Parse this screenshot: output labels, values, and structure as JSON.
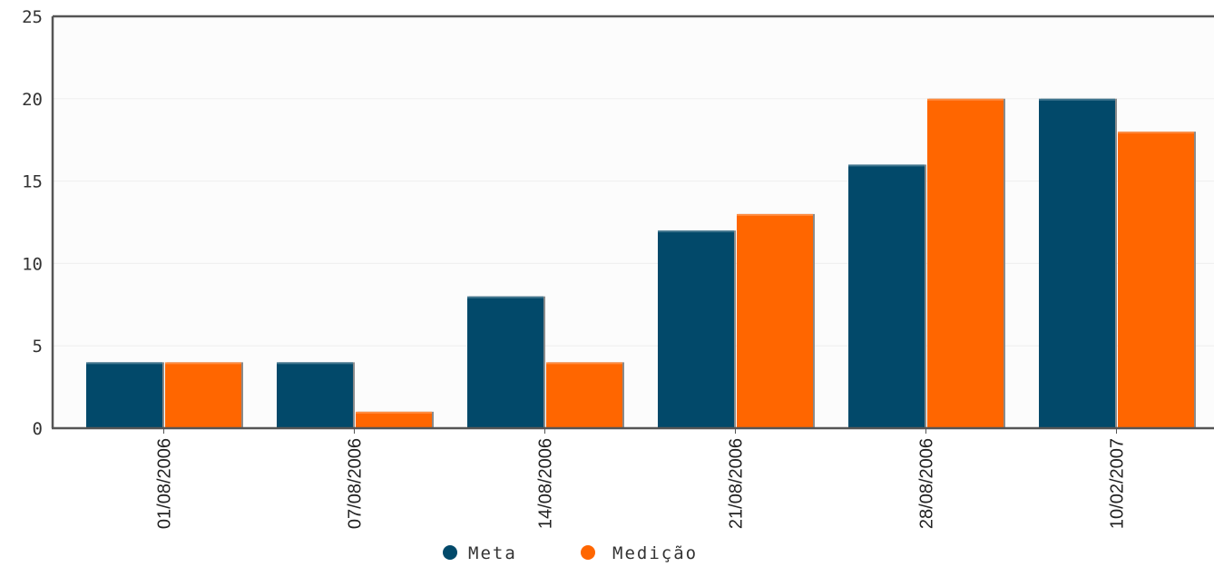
{
  "chart_data": {
    "type": "bar",
    "title": "",
    "xlabel": "",
    "ylabel": "",
    "categories": [
      "01/08/2006",
      "07/08/2006",
      "14/08/2006",
      "21/08/2006",
      "28/08/2006",
      "10/02/2007"
    ],
    "series": [
      {
        "name": "Meta",
        "color": "#02496a",
        "values": [
          4,
          4,
          8,
          12,
          16,
          20
        ]
      },
      {
        "name": "Medição",
        "color": "#ff6600",
        "values": [
          4,
          1,
          4,
          13,
          20,
          18
        ]
      }
    ],
    "ylim": [
      0,
      25
    ],
    "yticks": [
      "0",
      "5",
      "10",
      "15",
      "20",
      "25"
    ],
    "grid": true,
    "legend": "bottom-center",
    "background": "#fcfcfc",
    "axis_color": "#555555"
  }
}
